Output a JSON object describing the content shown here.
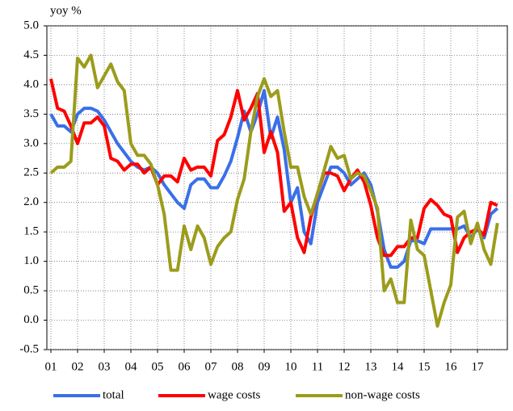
{
  "chart_data": {
    "type": "line",
    "y_label": "yoy %",
    "categories": [
      "01",
      null,
      null,
      null,
      "02",
      null,
      null,
      null,
      "03",
      null,
      null,
      null,
      "04",
      null,
      null,
      null,
      "05",
      null,
      null,
      null,
      "06",
      null,
      null,
      null,
      "07",
      null,
      null,
      null,
      "08",
      null,
      null,
      null,
      "09",
      null,
      null,
      null,
      "10",
      null,
      null,
      null,
      "11",
      null,
      null,
      null,
      "12",
      null,
      null,
      null,
      "13",
      null,
      null,
      null,
      "14",
      null,
      null,
      null,
      "15",
      null,
      null,
      null,
      "16",
      null,
      null,
      null,
      "17",
      null,
      null,
      null
    ],
    "series": [
      {
        "name": "total",
        "color": "#3a6fe8",
        "values": [
          3.5,
          3.3,
          3.3,
          3.2,
          3.5,
          3.6,
          3.6,
          3.55,
          3.4,
          3.2,
          3.0,
          2.85,
          2.7,
          2.6,
          2.55,
          2.6,
          2.5,
          2.3,
          2.15,
          2.0,
          1.9,
          2.3,
          2.4,
          2.4,
          2.25,
          2.25,
          2.45,
          2.7,
          3.1,
          3.55,
          3.2,
          3.5,
          3.9,
          3.1,
          3.45,
          2.9,
          2.0,
          2.25,
          1.5,
          1.3,
          2.0,
          2.3,
          2.6,
          2.6,
          2.5,
          2.3,
          2.4,
          2.5,
          2.3,
          1.85,
          1.2,
          0.9,
          0.9,
          1.0,
          1.35,
          1.35,
          1.3,
          1.55,
          1.55,
          1.55,
          1.55,
          1.55,
          1.6,
          1.4,
          1.55,
          1.4,
          1.8,
          1.9
        ]
      },
      {
        "name": "wage costs",
        "color": "#ff0000",
        "values": [
          4.1,
          3.6,
          3.55,
          3.3,
          3.0,
          3.35,
          3.35,
          3.45,
          3.3,
          2.75,
          2.7,
          2.55,
          2.65,
          2.65,
          2.5,
          2.6,
          2.3,
          2.45,
          2.45,
          2.35,
          2.75,
          2.55,
          2.6,
          2.6,
          2.45,
          3.05,
          3.15,
          3.45,
          3.9,
          3.4,
          3.6,
          3.85,
          2.85,
          3.2,
          2.85,
          1.85,
          2.0,
          1.4,
          1.15,
          1.75,
          2.15,
          2.5,
          2.5,
          2.45,
          2.2,
          2.4,
          2.55,
          2.35,
          1.95,
          1.4,
          1.1,
          1.1,
          1.25,
          1.25,
          1.4,
          1.4,
          1.9,
          2.05,
          1.95,
          1.8,
          1.75,
          1.15,
          1.4,
          1.5,
          1.55,
          1.45,
          2.0,
          1.95
        ]
      },
      {
        "name": "non-wage costs",
        "color": "#9c9c1c",
        "values": [
          2.5,
          2.6,
          2.6,
          2.7,
          4.45,
          4.3,
          4.5,
          3.95,
          4.15,
          4.35,
          4.05,
          3.9,
          3.0,
          2.8,
          2.8,
          2.65,
          2.3,
          1.8,
          0.85,
          0.85,
          1.6,
          1.2,
          1.6,
          1.4,
          0.95,
          1.25,
          1.4,
          1.5,
          2.05,
          2.4,
          3.2,
          3.8,
          4.1,
          3.8,
          3.9,
          3.2,
          2.6,
          2.6,
          2.1,
          1.8,
          2.15,
          2.55,
          2.95,
          2.75,
          2.8,
          2.4,
          2.5,
          2.45,
          2.2,
          1.9,
          0.5,
          0.7,
          0.3,
          0.3,
          1.7,
          1.2,
          1.1,
          0.5,
          -0.1,
          0.3,
          0.6,
          1.75,
          1.85,
          1.3,
          1.65,
          1.2,
          0.95,
          1.65
        ]
      }
    ],
    "ylim": [
      -0.5,
      5.0
    ],
    "yticks": [
      {
        "value": 5.0,
        "label": "5.0"
      },
      4.5,
      {
        "value": 4.0,
        "label": "4.0"
      },
      3.5,
      {
        "value": 3.0,
        "label": "3.0"
      },
      2.5,
      {
        "value": 2.0,
        "label": "2.0"
      },
      1.5,
      {
        "value": 1.0,
        "label": "1.0"
      },
      0.5,
      {
        "value": 0.0,
        "label": "0.0"
      },
      -0.5
    ],
    "grid": true,
    "legend": "bottom"
  }
}
